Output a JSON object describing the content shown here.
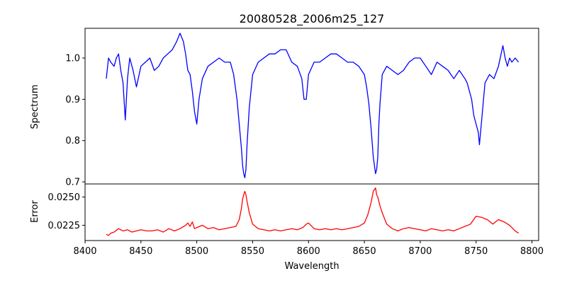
{
  "chart_data": [
    {
      "type": "line",
      "title": "20080528_2006m25_127",
      "xlabel": "",
      "ylabel": "Spectrum",
      "xlim": [
        8400,
        8806
      ],
      "ylim": [
        0.695,
        1.072
      ],
      "yticks": [
        0.7,
        0.8,
        0.9,
        1.0
      ],
      "yticklabels": [
        "0.7",
        "0.8",
        "0.9",
        "1.0"
      ],
      "series": [
        {
          "color": "#0000ff",
          "x": [
            8419,
            8421,
            8423,
            8426,
            8428,
            8430,
            8432,
            8434,
            8436,
            8438,
            8440,
            8443,
            8446,
            8450,
            8454,
            8458,
            8462,
            8466,
            8470,
            8474,
            8478,
            8482,
            8485,
            8488,
            8490,
            8492,
            8494,
            8496,
            8498,
            8500,
            8502,
            8505,
            8510,
            8515,
            8520,
            8525,
            8530,
            8533,
            8536,
            8538,
            8540,
            8541,
            8542,
            8543,
            8544,
            8545,
            8547,
            8550,
            8555,
            8560,
            8565,
            8570,
            8575,
            8580,
            8585,
            8590,
            8594,
            8596,
            8598,
            8600,
            8605,
            8610,
            8615,
            8620,
            8625,
            8630,
            8635,
            8640,
            8645,
            8650,
            8652,
            8654,
            8656,
            8658,
            8659,
            8660,
            8661,
            8662,
            8663,
            8664,
            8666,
            8670,
            8675,
            8680,
            8685,
            8690,
            8695,
            8700,
            8705,
            8710,
            8715,
            8720,
            8725,
            8730,
            8735,
            8740,
            8742,
            8744,
            8746,
            8748,
            8750,
            8752,
            8753,
            8755,
            8758,
            8762,
            8766,
            8770,
            8774,
            8776,
            8778,
            8780,
            8782,
            8785,
            8788
          ],
          "y": [
            0.95,
            1.0,
            0.99,
            0.98,
            1.0,
            1.01,
            0.97,
            0.94,
            0.85,
            0.95,
            1.0,
            0.97,
            0.93,
            0.98,
            0.99,
            1.0,
            0.97,
            0.98,
            1.0,
            1.01,
            1.02,
            1.04,
            1.06,
            1.04,
            1.01,
            0.97,
            0.96,
            0.92,
            0.87,
            0.84,
            0.9,
            0.95,
            0.98,
            0.99,
            1.0,
            0.99,
            0.99,
            0.96,
            0.9,
            0.84,
            0.78,
            0.74,
            0.72,
            0.71,
            0.73,
            0.79,
            0.88,
            0.96,
            0.99,
            1.0,
            1.01,
            1.01,
            1.02,
            1.02,
            0.99,
            0.98,
            0.95,
            0.9,
            0.9,
            0.96,
            0.99,
            0.99,
            1.0,
            1.01,
            1.01,
            1.0,
            0.99,
            0.99,
            0.98,
            0.96,
            0.93,
            0.89,
            0.83,
            0.76,
            0.74,
            0.72,
            0.73,
            0.76,
            0.84,
            0.89,
            0.96,
            0.98,
            0.97,
            0.96,
            0.97,
            0.99,
            1.0,
            1.0,
            0.98,
            0.96,
            0.99,
            0.98,
            0.97,
            0.95,
            0.97,
            0.95,
            0.94,
            0.92,
            0.9,
            0.86,
            0.84,
            0.82,
            0.79,
            0.85,
            0.94,
            0.96,
            0.95,
            0.98,
            1.03,
            1.0,
            0.98,
            1.0,
            0.99,
            1.0,
            0.99
          ]
        }
      ]
    },
    {
      "type": "line",
      "title": "",
      "xlabel": "Wavelength",
      "ylabel": "Error",
      "xlim": [
        8400,
        8806
      ],
      "ylim": [
        0.02115,
        0.02615
      ],
      "xticks": [
        8400,
        8450,
        8500,
        8550,
        8600,
        8650,
        8700,
        8750,
        8800
      ],
      "xticklabels": [
        "8400",
        "8450",
        "8500",
        "8550",
        "8600",
        "8650",
        "8700",
        "8750",
        "8800"
      ],
      "yticks": [
        0.0225,
        0.025
      ],
      "yticklabels": [
        "0.0225",
        "0.0250"
      ],
      "series": [
        {
          "color": "#ff0000",
          "x": [
            8419,
            8421,
            8423,
            8426,
            8430,
            8434,
            8438,
            8442,
            8446,
            8450,
            8455,
            8460,
            8465,
            8470,
            8475,
            8480,
            8485,
            8490,
            8492,
            8494,
            8496,
            8498,
            8500,
            8505,
            8510,
            8515,
            8520,
            8525,
            8530,
            8535,
            8538,
            8540,
            8541,
            8542,
            8543,
            8544,
            8545,
            8547,
            8550,
            8555,
            8560,
            8565,
            8570,
            8575,
            8580,
            8585,
            8590,
            8595,
            8598,
            8600,
            8605,
            8610,
            8615,
            8620,
            8625,
            8630,
            8635,
            8640,
            8645,
            8650,
            8653,
            8656,
            8658,
            8660,
            8661,
            8662,
            8663,
            8664,
            8666,
            8670,
            8675,
            8680,
            8685,
            8690,
            8695,
            8700,
            8705,
            8710,
            8715,
            8720,
            8725,
            8730,
            8735,
            8740,
            8745,
            8750,
            8755,
            8760,
            8765,
            8770,
            8775,
            8780,
            8785,
            8788
          ],
          "y": [
            0.0217,
            0.0216,
            0.0218,
            0.0219,
            0.0222,
            0.022,
            0.0221,
            0.0219,
            0.022,
            0.0221,
            0.022,
            0.022,
            0.0221,
            0.0219,
            0.0222,
            0.022,
            0.0222,
            0.0225,
            0.0227,
            0.0224,
            0.0228,
            0.0222,
            0.0223,
            0.0225,
            0.0222,
            0.0223,
            0.0221,
            0.0222,
            0.0223,
            0.0224,
            0.023,
            0.024,
            0.0248,
            0.0252,
            0.0255,
            0.0252,
            0.0246,
            0.0236,
            0.0226,
            0.0222,
            0.0221,
            0.022,
            0.0221,
            0.022,
            0.0221,
            0.0222,
            0.0221,
            0.0223,
            0.0226,
            0.0227,
            0.0222,
            0.0221,
            0.0222,
            0.0221,
            0.0222,
            0.0221,
            0.0222,
            0.0223,
            0.0224,
            0.0227,
            0.0234,
            0.0245,
            0.0255,
            0.0258,
            0.0252,
            0.025,
            0.0246,
            0.0242,
            0.0236,
            0.0226,
            0.0222,
            0.022,
            0.0222,
            0.0223,
            0.0222,
            0.0221,
            0.022,
            0.0222,
            0.0221,
            0.022,
            0.0221,
            0.022,
            0.0222,
            0.0224,
            0.0226,
            0.0233,
            0.0232,
            0.023,
            0.0226,
            0.023,
            0.0228,
            0.0225,
            0.022,
            0.0218
          ]
        }
      ]
    }
  ]
}
